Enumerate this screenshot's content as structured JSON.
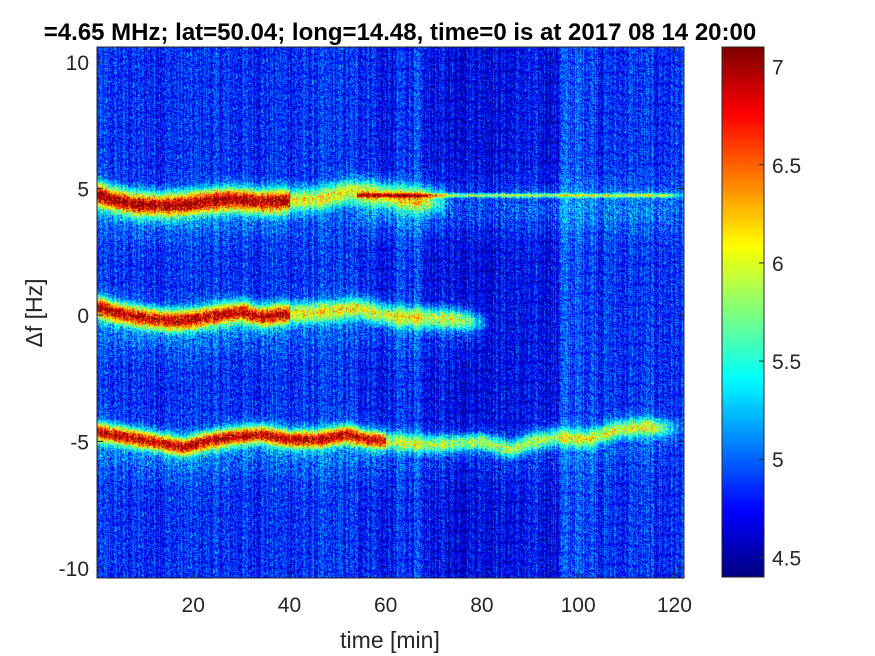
{
  "chart_data": {
    "type": "heatmap",
    "title": "=4.65 MHz;  lat=50.04; long=14.48, time=0 is at 2017 08 14 20:00",
    "xlabel": "time [min]",
    "ylabel": "Δf [Hz]",
    "xlim": [
      0,
      122
    ],
    "ylim": [
      -10.4,
      10.6
    ],
    "xticks": [
      20,
      40,
      60,
      80,
      100,
      120
    ],
    "xtick_labels": [
      "20",
      "40",
      "60",
      "80",
      "100",
      "120"
    ],
    "yticks": [
      -10,
      -5,
      0,
      5,
      10
    ],
    "ytick_labels": [
      "-10",
      "-5",
      "0",
      "5",
      "10"
    ],
    "colorbar": {
      "colormap": "jet",
      "clim": [
        4.4,
        7.1
      ],
      "ticks": [
        4.5,
        5,
        5.5,
        6,
        6.5,
        7
      ],
      "tick_labels": [
        "4.5",
        "5",
        "5.5",
        "6",
        "6.5",
        "7"
      ]
    },
    "background_level": 4.8,
    "traces": [
      {
        "points": [
          [
            0,
            4.8
          ],
          [
            3,
            4.6
          ],
          [
            8,
            4.4
          ],
          [
            14,
            4.35
          ],
          [
            18,
            4.4
          ],
          [
            22,
            4.5
          ],
          [
            28,
            4.6
          ],
          [
            34,
            4.5
          ],
          [
            40,
            4.55
          ],
          [
            46,
            4.6
          ],
          [
            52,
            4.9
          ],
          [
            56,
            4.85
          ],
          [
            60,
            4.75
          ],
          [
            66,
            4.6
          ],
          [
            72,
            4.55
          ]
        ],
        "peak": 7.0,
        "width_hz": 0.45
      },
      {
        "points": [
          [
            0,
            4.75
          ],
          [
            122,
            4.75
          ]
        ],
        "peak": 5.9,
        "width_hz": 0.08,
        "x_from": 54
      },
      {
        "points": [
          [
            0,
            0.35
          ],
          [
            4,
            0.1
          ],
          [
            10,
            -0.1
          ],
          [
            16,
            -0.2
          ],
          [
            20,
            -0.15
          ],
          [
            26,
            0.05
          ],
          [
            30,
            0.15
          ],
          [
            34,
            -0.05
          ],
          [
            38,
            0.05
          ],
          [
            44,
            0.1
          ],
          [
            50,
            0.2
          ],
          [
            54,
            0.3
          ],
          [
            58,
            0.1
          ],
          [
            62,
            -0.05
          ],
          [
            68,
            -0.1
          ],
          [
            74,
            -0.15
          ],
          [
            80,
            -0.3
          ]
        ],
        "peak": 6.9,
        "width_hz": 0.4
      },
      {
        "points": [
          [
            0,
            -4.6
          ],
          [
            6,
            -4.8
          ],
          [
            12,
            -5.0
          ],
          [
            18,
            -5.2
          ],
          [
            22,
            -5.0
          ],
          [
            28,
            -4.8
          ],
          [
            34,
            -4.7
          ],
          [
            40,
            -4.9
          ],
          [
            46,
            -4.9
          ],
          [
            52,
            -4.7
          ],
          [
            56,
            -4.9
          ],
          [
            62,
            -5.0
          ],
          [
            70,
            -5.1
          ],
          [
            80,
            -5.0
          ],
          [
            86,
            -5.3
          ],
          [
            90,
            -5.0
          ],
          [
            96,
            -4.8
          ],
          [
            102,
            -4.9
          ],
          [
            108,
            -4.5
          ],
          [
            114,
            -4.4
          ],
          [
            120,
            -4.5
          ]
        ],
        "peak": 6.9,
        "width_hz": 0.35
      }
    ]
  }
}
